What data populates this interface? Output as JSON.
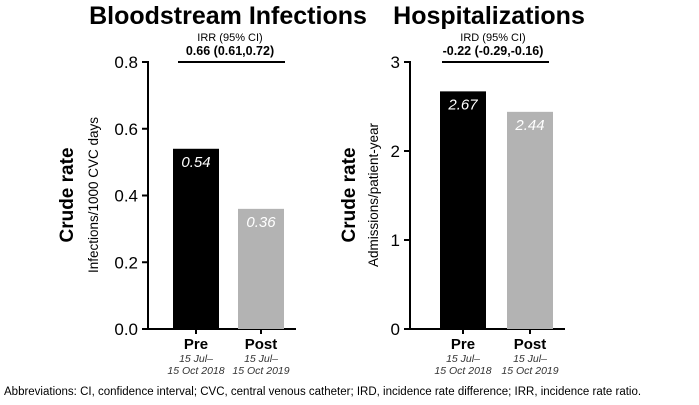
{
  "chart_data": [
    {
      "type": "bar",
      "title": "Bloodstream Infections",
      "stat_label": "IRR (95% CI)",
      "stat_value": "0.66 (0.61,0.72)",
      "ylabel_main": "Crude rate",
      "ylabel_sub": "Infections/1000 CVC days",
      "ylim": [
        0,
        0.8
      ],
      "yticks": [
        "0.0",
        "0.2",
        "0.4",
        "0.6",
        "0.8"
      ],
      "ytick_values": [
        0,
        0.2,
        0.4,
        0.6,
        0.8
      ],
      "categories": [
        "Pre",
        "Post"
      ],
      "category_sub1": [
        "15 Jul–",
        "15 Jul–"
      ],
      "category_sub2": [
        "15 Oct  2018",
        "15 Oct 2019"
      ],
      "values": [
        0.54,
        0.36
      ],
      "data_labels": [
        "0.54",
        "0.36"
      ],
      "colors": [
        "#000000",
        "#b3b3b3"
      ]
    },
    {
      "type": "bar",
      "title": "Hospitalizations",
      "stat_label": "IRD (95% CI)",
      "stat_value": "-0.22 (-0.29,-0.16)",
      "ylabel_main": "Crude rate",
      "ylabel_sub": "Admissions/patient-year",
      "ylim": [
        0,
        3
      ],
      "yticks": [
        "0",
        "1",
        "2",
        "3"
      ],
      "ytick_values": [
        0,
        1,
        2,
        3
      ],
      "categories": [
        "Pre",
        "Post"
      ],
      "category_sub1": [
        "15 Jul–",
        "15 Jul–"
      ],
      "category_sub2": [
        "15 Oct  2018",
        "15 Oct 2019"
      ],
      "values": [
        2.67,
        2.44
      ],
      "data_labels": [
        "2.67",
        "2.44"
      ],
      "colors": [
        "#000000",
        "#b3b3b3"
      ]
    }
  ],
  "footnote": "Abbreviations: CI, confidence interval; CVC, central venous catheter; IRD, incidence rate difference; IRR, incidence rate ratio."
}
